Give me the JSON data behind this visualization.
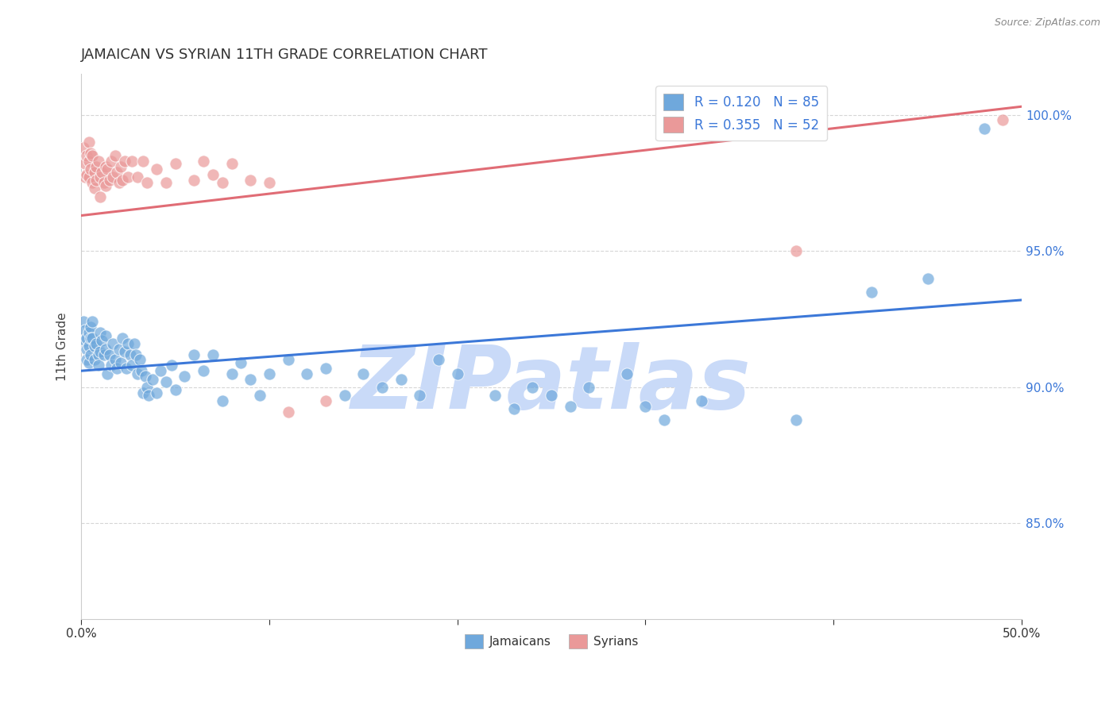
{
  "title": "JAMAICAN VS SYRIAN 11TH GRADE CORRELATION CHART",
  "source": "Source: ZipAtlas.com",
  "ylabel": "11th Grade",
  "ylabel_right_ticks": [
    "85.0%",
    "90.0%",
    "95.0%",
    "100.0%"
  ],
  "ylabel_right_vals": [
    0.85,
    0.9,
    0.95,
    1.0
  ],
  "xmin": 0.0,
  "xmax": 0.5,
  "ymin": 0.815,
  "ymax": 1.015,
  "watermark": "ZIPatlas",
  "legend_r_blue": "R = 0.120",
  "legend_n_blue": "N = 85",
  "legend_r_pink": "R = 0.355",
  "legend_n_pink": "N = 52",
  "blue_color": "#6fa8dc",
  "pink_color": "#ea9999",
  "blue_line_color": "#3c78d8",
  "pink_line_color": "#e06c75",
  "watermark_color": "#c9daf8",
  "blue_scatter": [
    [
      0.001,
      0.924
    ],
    [
      0.002,
      0.921
    ],
    [
      0.002,
      0.917
    ],
    [
      0.003,
      0.918
    ],
    [
      0.003,
      0.914
    ],
    [
      0.003,
      0.91
    ],
    [
      0.004,
      0.92
    ],
    [
      0.004,
      0.915
    ],
    [
      0.004,
      0.909
    ],
    [
      0.005,
      0.922
    ],
    [
      0.005,
      0.918
    ],
    [
      0.005,
      0.912
    ],
    [
      0.006,
      0.924
    ],
    [
      0.006,
      0.918
    ],
    [
      0.007,
      0.915
    ],
    [
      0.007,
      0.91
    ],
    [
      0.008,
      0.916
    ],
    [
      0.009,
      0.912
    ],
    [
      0.009,
      0.908
    ],
    [
      0.01,
      0.92
    ],
    [
      0.01,
      0.913
    ],
    [
      0.011,
      0.917
    ],
    [
      0.012,
      0.912
    ],
    [
      0.013,
      0.919
    ],
    [
      0.013,
      0.914
    ],
    [
      0.014,
      0.905
    ],
    [
      0.015,
      0.912
    ],
    [
      0.016,
      0.908
    ],
    [
      0.017,
      0.916
    ],
    [
      0.018,
      0.91
    ],
    [
      0.019,
      0.907
    ],
    [
      0.02,
      0.914
    ],
    [
      0.021,
      0.909
    ],
    [
      0.022,
      0.918
    ],
    [
      0.023,
      0.913
    ],
    [
      0.024,
      0.907
    ],
    [
      0.025,
      0.916
    ],
    [
      0.026,
      0.912
    ],
    [
      0.027,
      0.908
    ],
    [
      0.028,
      0.916
    ],
    [
      0.029,
      0.912
    ],
    [
      0.03,
      0.905
    ],
    [
      0.031,
      0.91
    ],
    [
      0.032,
      0.906
    ],
    [
      0.033,
      0.898
    ],
    [
      0.034,
      0.904
    ],
    [
      0.035,
      0.9
    ],
    [
      0.036,
      0.897
    ],
    [
      0.038,
      0.903
    ],
    [
      0.04,
      0.898
    ],
    [
      0.042,
      0.906
    ],
    [
      0.045,
      0.902
    ],
    [
      0.048,
      0.908
    ],
    [
      0.05,
      0.899
    ],
    [
      0.055,
      0.904
    ],
    [
      0.06,
      0.912
    ],
    [
      0.065,
      0.906
    ],
    [
      0.07,
      0.912
    ],
    [
      0.075,
      0.895
    ],
    [
      0.08,
      0.905
    ],
    [
      0.085,
      0.909
    ],
    [
      0.09,
      0.903
    ],
    [
      0.095,
      0.897
    ],
    [
      0.1,
      0.905
    ],
    [
      0.11,
      0.91
    ],
    [
      0.12,
      0.905
    ],
    [
      0.13,
      0.907
    ],
    [
      0.14,
      0.897
    ],
    [
      0.15,
      0.905
    ],
    [
      0.16,
      0.9
    ],
    [
      0.17,
      0.903
    ],
    [
      0.18,
      0.897
    ],
    [
      0.19,
      0.91
    ],
    [
      0.2,
      0.905
    ],
    [
      0.22,
      0.897
    ],
    [
      0.23,
      0.892
    ],
    [
      0.24,
      0.9
    ],
    [
      0.25,
      0.897
    ],
    [
      0.26,
      0.893
    ],
    [
      0.27,
      0.9
    ],
    [
      0.29,
      0.905
    ],
    [
      0.3,
      0.893
    ],
    [
      0.31,
      0.888
    ],
    [
      0.33,
      0.895
    ],
    [
      0.38,
      0.888
    ],
    [
      0.42,
      0.935
    ],
    [
      0.45,
      0.94
    ],
    [
      0.48,
      0.995
    ]
  ],
  "pink_scatter": [
    [
      0.001,
      0.988
    ],
    [
      0.002,
      0.982
    ],
    [
      0.002,
      0.977
    ],
    [
      0.003,
      0.985
    ],
    [
      0.003,
      0.978
    ],
    [
      0.004,
      0.99
    ],
    [
      0.004,
      0.983
    ],
    [
      0.004,
      0.977
    ],
    [
      0.005,
      0.986
    ],
    [
      0.005,
      0.98
    ],
    [
      0.006,
      0.975
    ],
    [
      0.006,
      0.985
    ],
    [
      0.007,
      0.979
    ],
    [
      0.007,
      0.973
    ],
    [
      0.008,
      0.981
    ],
    [
      0.008,
      0.976
    ],
    [
      0.009,
      0.983
    ],
    [
      0.01,
      0.977
    ],
    [
      0.01,
      0.97
    ],
    [
      0.011,
      0.979
    ],
    [
      0.012,
      0.975
    ],
    [
      0.013,
      0.981
    ],
    [
      0.013,
      0.974
    ],
    [
      0.014,
      0.98
    ],
    [
      0.015,
      0.976
    ],
    [
      0.016,
      0.983
    ],
    [
      0.017,
      0.977
    ],
    [
      0.018,
      0.985
    ],
    [
      0.019,
      0.979
    ],
    [
      0.02,
      0.975
    ],
    [
      0.021,
      0.981
    ],
    [
      0.022,
      0.976
    ],
    [
      0.023,
      0.983
    ],
    [
      0.025,
      0.977
    ],
    [
      0.027,
      0.983
    ],
    [
      0.03,
      0.977
    ],
    [
      0.033,
      0.983
    ],
    [
      0.035,
      0.975
    ],
    [
      0.04,
      0.98
    ],
    [
      0.045,
      0.975
    ],
    [
      0.05,
      0.982
    ],
    [
      0.06,
      0.976
    ],
    [
      0.065,
      0.983
    ],
    [
      0.07,
      0.978
    ],
    [
      0.075,
      0.975
    ],
    [
      0.08,
      0.982
    ],
    [
      0.09,
      0.976
    ],
    [
      0.1,
      0.975
    ],
    [
      0.11,
      0.891
    ],
    [
      0.13,
      0.895
    ],
    [
      0.38,
      0.95
    ],
    [
      0.49,
      0.998
    ]
  ],
  "blue_line_x": [
    0.0,
    0.5
  ],
  "blue_line_y": [
    0.906,
    0.932
  ],
  "pink_line_x": [
    0.0,
    0.5
  ],
  "pink_line_y": [
    0.963,
    1.003
  ]
}
